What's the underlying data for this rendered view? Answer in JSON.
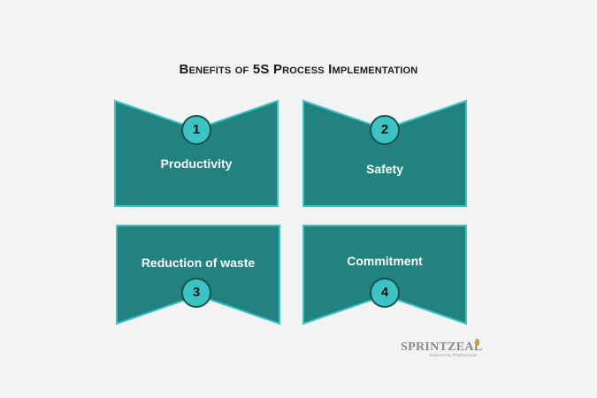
{
  "title": "Benefits of 5S Process Implementation",
  "colors": {
    "card_fill": "#22827f",
    "card_stroke": "#3cc3c4",
    "badge_fill": "#3cc3c4",
    "badge_stroke": "#18524f",
    "label_text": "#ffffff",
    "background": "#f3f3f3"
  },
  "cards": [
    {
      "number": "1",
      "label": "Productivity"
    },
    {
      "number": "2",
      "label": "Safety"
    },
    {
      "number": "3",
      "label": "Reduction of waste"
    },
    {
      "number": "4",
      "label": "Commitment"
    }
  ],
  "logo": {
    "word": "SPRINTZEAL",
    "tagline": "Empowering Professionals"
  }
}
